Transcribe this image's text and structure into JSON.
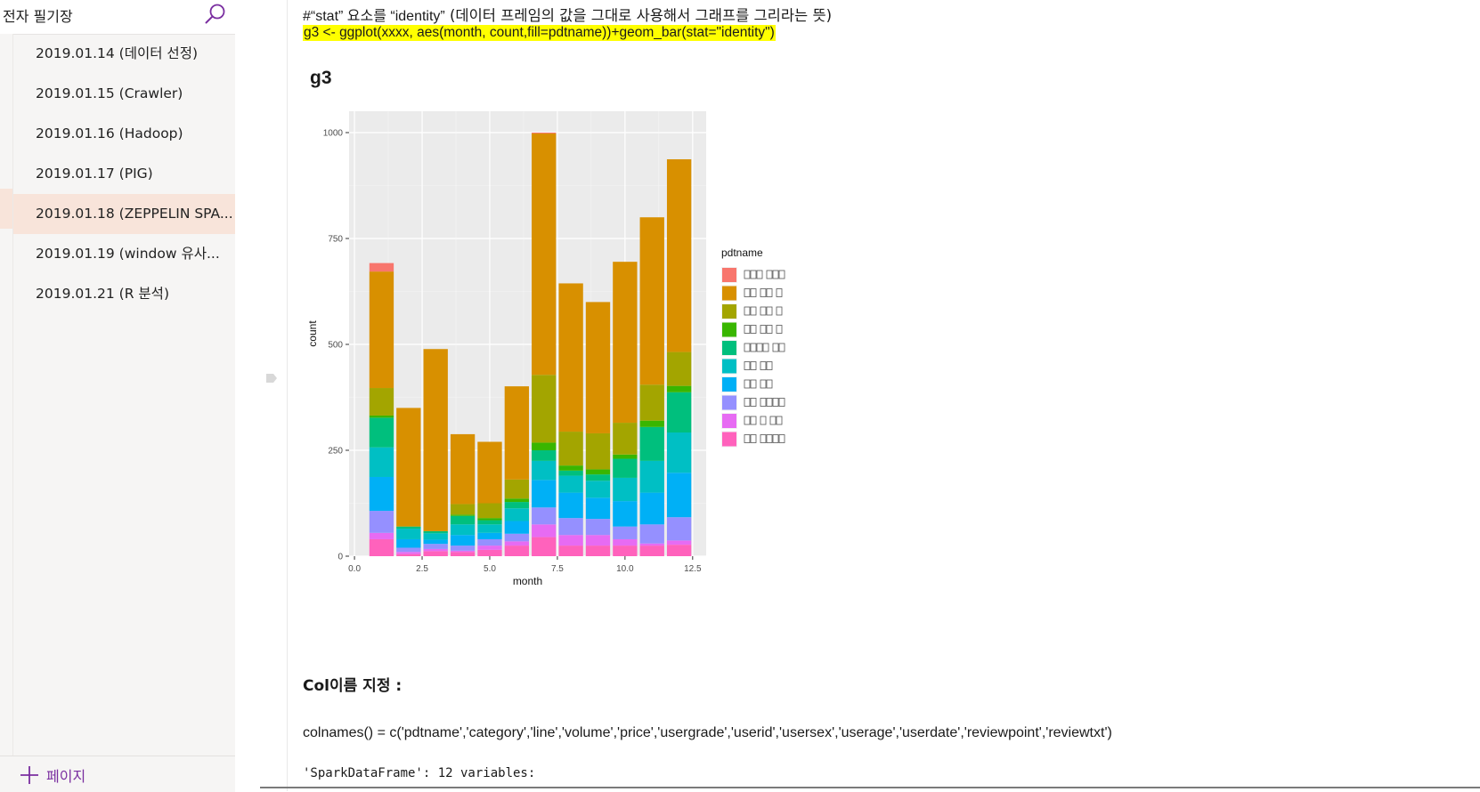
{
  "sidebar": {
    "notebook_title": "전자 필기장",
    "search_icon": "search-icon",
    "accent_color": "#7a2ea0",
    "active_color": "#f8e4da",
    "pages": [
      {
        "label": "2019.01.14 (데이터 선정)",
        "active": false
      },
      {
        "label": "2019.01.15 (Crawler)",
        "active": false
      },
      {
        "label": "2019.01.16 (Hadoop)",
        "active": false
      },
      {
        "label": "2019.01.17 (PIG)",
        "active": false
      },
      {
        "label": "2019.01.18 (ZEPPELIN SPA...",
        "active": true
      },
      {
        "label": "2019.01.19 (window 유사...",
        "active": false
      },
      {
        "label": "2019.01.21 (R 분석)",
        "active": false
      }
    ],
    "add_page_label": "페이지"
  },
  "content": {
    "comment_prefix": "#“stat” 요소를 “identity”",
    "comment_suffix": " (데이터 프레임의 값을 그대로 사용해서 그래프를 그리라는 뜻)",
    "code": "g3 <- ggplot(xxxx, aes(month, count,fill=pdtname))+geom_bar(stat=\"identity\")",
    "code_highlight": "#ffff00",
    "g3_label": "g3",
    "col_heading": "Col이름 지정 :",
    "colnames_code": "colnames() = c('pdtname','category','line','volume','price','usergrade','userid','usersex','userage','userdate','reviewpoint','reviewtxt')",
    "spark_line": "'SparkDataFrame': 12 variables:"
  },
  "chart_data": {
    "type": "bar",
    "stacked": true,
    "xlabel": "month",
    "ylabel": "count",
    "xlim": [
      0,
      12.5
    ],
    "ylim": [
      0,
      1000
    ],
    "x_ticks": [
      "0.0",
      "2.5",
      "5.0",
      "7.5",
      "10.0",
      "12.5"
    ],
    "y_ticks": [
      "0",
      "250",
      "500",
      "750",
      "1000"
    ],
    "legend_title": "pdtname",
    "legend_position": "right",
    "grid": true,
    "categories": [
      1,
      2,
      3,
      4,
      5,
      6,
      7,
      8,
      9,
      10,
      11,
      12
    ],
    "series": [
      {
        "color": "#f8766d",
        "values": [
          20,
          0,
          0,
          0,
          0,
          0,
          2,
          0,
          0,
          0,
          0,
          0
        ]
      },
      {
        "color": "#d89000",
        "values": [
          275,
          280,
          430,
          165,
          145,
          220,
          570,
          350,
          310,
          380,
          395,
          455
        ]
      },
      {
        "color": "#a3a500",
        "values": [
          65,
          0,
          0,
          25,
          35,
          45,
          160,
          80,
          85,
          75,
          85,
          80
        ]
      },
      {
        "color": "#39b600",
        "values": [
          5,
          0,
          0,
          3,
          5,
          8,
          18,
          12,
          12,
          10,
          15,
          15
        ]
      },
      {
        "color": "#00bf7d",
        "values": [
          70,
          5,
          5,
          20,
          10,
          15,
          25,
          12,
          15,
          45,
          80,
          95
        ]
      },
      {
        "color": "#00bfc4",
        "values": [
          70,
          25,
          15,
          25,
          20,
          30,
          45,
          40,
          40,
          55,
          75,
          95
        ]
      },
      {
        "color": "#00b0f6",
        "values": [
          80,
          20,
          10,
          25,
          15,
          30,
          65,
          60,
          50,
          60,
          75,
          105
        ]
      },
      {
        "color": "#9590ff",
        "values": [
          52,
          10,
          12,
          12,
          15,
          18,
          40,
          40,
          38,
          30,
          45,
          55
        ]
      },
      {
        "color": "#e76bf3",
        "values": [
          15,
          5,
          5,
          3,
          10,
          10,
          30,
          25,
          25,
          15,
          5,
          10
        ]
      },
      {
        "color": "#ff62bc",
        "values": [
          40,
          5,
          12,
          10,
          15,
          25,
          45,
          25,
          25,
          25,
          25,
          27
        ]
      }
    ]
  }
}
